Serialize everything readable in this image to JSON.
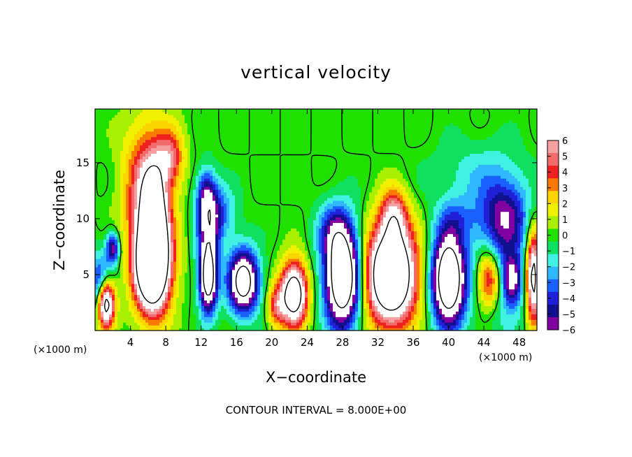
{
  "chart_data": {
    "type": "heatmap",
    "title": "vertical velocity",
    "xlabel": "X−coordinate",
    "ylabel": "Z−coordinate",
    "x_unit_left": "(×1000 m)",
    "x_unit_right": "(×1000 m)",
    "footer": "CONTOUR INTERVAL = 8.000E+00",
    "xlim": [
      0,
      50
    ],
    "ylim": [
      0,
      19.8
    ],
    "x_ticks": [
      {
        "value": 4,
        "label": "4"
      },
      {
        "value": 8,
        "label": "8"
      },
      {
        "value": 12,
        "label": "12"
      },
      {
        "value": 16,
        "label": "16"
      },
      {
        "value": 20,
        "label": "20"
      },
      {
        "value": 24,
        "label": "24"
      },
      {
        "value": 28,
        "label": "28"
      },
      {
        "value": 32,
        "label": "32"
      },
      {
        "value": 36,
        "label": "36"
      },
      {
        "value": 40,
        "label": "40"
      },
      {
        "value": 44,
        "label": "44"
      },
      {
        "value": 48,
        "label": "48"
      }
    ],
    "y_ticks": [
      {
        "value": 5,
        "label": "5"
      },
      {
        "value": 10,
        "label": "10"
      },
      {
        "value": 15,
        "label": "15"
      }
    ],
    "colorbar": {
      "min": -6,
      "max": 6,
      "labels": [
        "6",
        "5",
        "4",
        "3",
        "2",
        "1",
        "0",
        "−1",
        "−2",
        "−3",
        "−4",
        "−5",
        "−6"
      ],
      "colors": [
        "#f5a0a0",
        "#f26a6a",
        "#ee2020",
        "#fa7a00",
        "#fcd400",
        "#f0f000",
        "#a8f000",
        "#20e000",
        "#10e060",
        "#40f0e0",
        "#30b8ff",
        "#1a60ff",
        "#2020d8",
        "#101090",
        "#8000a0"
      ]
    },
    "features": [
      {
        "x": 1.2,
        "z": 2.6,
        "rx": 1.0,
        "rz": 2.2,
        "w": 12
      },
      {
        "x": 0.6,
        "z": 4.0,
        "rx": 1.3,
        "rz": 2.6,
        "w": -6
      },
      {
        "x": 2.0,
        "z": 7.4,
        "rx": 0.7,
        "rz": 1.4,
        "w": -6
      },
      {
        "x": 6.5,
        "z": 6.0,
        "rx": 2.0,
        "rz": 4.2,
        "w": 16
      },
      {
        "x": 6.0,
        "z": 13.0,
        "rx": 2.6,
        "rz": 5.5,
        "w": 6
      },
      {
        "x": 6.6,
        "z": 10.5,
        "rx": 1.2,
        "rz": 3.5,
        "w": 8
      },
      {
        "x": 8.5,
        "z": 15.5,
        "rx": 1.5,
        "rz": 2.5,
        "w": 4
      },
      {
        "x": 12.8,
        "z": 4.6,
        "rx": 1.0,
        "rz": 3.0,
        "w": -10
      },
      {
        "x": 12.8,
        "z": 9.5,
        "rx": 1.3,
        "rz": 3.8,
        "w": -5
      },
      {
        "x": 14.0,
        "z": 10.5,
        "rx": 2.0,
        "rz": 2.5,
        "w": -3
      },
      {
        "x": 16.8,
        "z": 4.4,
        "rx": 1.7,
        "rz": 2.8,
        "w": -10
      },
      {
        "x": 22.5,
        "z": 3.3,
        "rx": 1.5,
        "rz": 2.8,
        "w": 11
      },
      {
        "x": 20.5,
        "z": 2.2,
        "rx": 1.0,
        "rz": 1.8,
        "w": 4
      },
      {
        "x": 28.0,
        "z": 4.8,
        "rx": 2.0,
        "rz": 4.5,
        "w": -12
      },
      {
        "x": 27.0,
        "z": 9.0,
        "rx": 2.0,
        "rz": 2.5,
        "w": -3
      },
      {
        "x": 33.5,
        "z": 5.0,
        "rx": 2.8,
        "rz": 4.3,
        "w": 14
      },
      {
        "x": 33.8,
        "z": 10.3,
        "rx": 1.5,
        "rz": 2.4,
        "w": 5
      },
      {
        "x": 40.0,
        "z": 4.6,
        "rx": 1.9,
        "rz": 4.1,
        "w": -12
      },
      {
        "x": 41.0,
        "z": 10.0,
        "rx": 2.5,
        "rz": 2.0,
        "w": -2
      },
      {
        "x": 44.6,
        "z": 4.7,
        "rx": 1.4,
        "rz": 2.7,
        "w": 7
      },
      {
        "x": 46.0,
        "z": 7.0,
        "rx": 3.0,
        "rz": 6.0,
        "w": -4
      },
      {
        "x": 46.5,
        "z": 10.5,
        "rx": 2.6,
        "rz": 2.8,
        "w": -3
      },
      {
        "x": 47.2,
        "z": 4.5,
        "rx": 1.0,
        "rz": 2.0,
        "w": -5
      },
      {
        "x": 49.6,
        "z": 4.8,
        "rx": 0.8,
        "rz": 4.0,
        "w": 10
      },
      {
        "x": 43.0,
        "z": 14.0,
        "rx": 5.0,
        "rz": 3.0,
        "w": -1.5
      },
      {
        "x": 12.5,
        "z": 12.5,
        "rx": 1.0,
        "rz": 2.0,
        "w": -3
      }
    ]
  }
}
